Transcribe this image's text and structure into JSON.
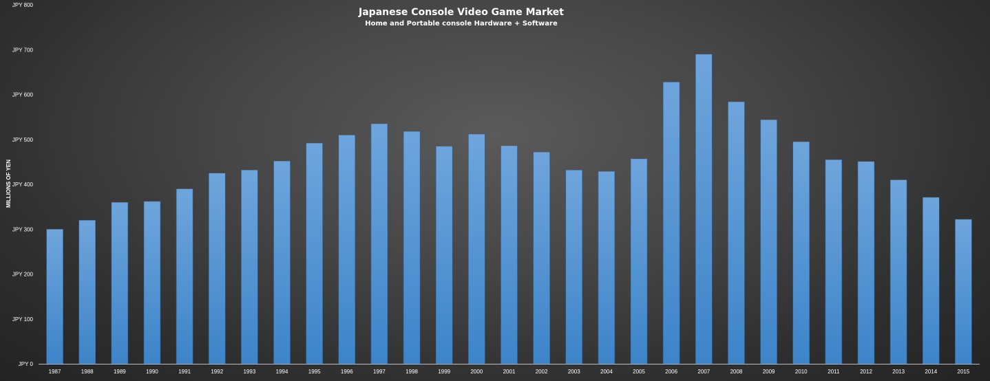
{
  "chart_data": {
    "type": "bar",
    "title": "Japanese Console Video Game Market",
    "subtitle": "Home and Portable console Hardware + Software",
    "ylabel": "MILLIONS OF YEN",
    "xlabel": "",
    "ylim": [
      0,
      800
    ],
    "yticks": [
      0,
      100,
      200,
      300,
      400,
      500,
      600,
      700,
      800
    ],
    "ytick_labels": [
      "JPY 0",
      "JPY 100",
      "JPY 200",
      "JPY 300",
      "JPY 400",
      "JPY 500",
      "JPY 600",
      "JPY 700",
      "JPY 800"
    ],
    "categories": [
      "1987",
      "1988",
      "1989",
      "1990",
      "1991",
      "1992",
      "1993",
      "1994",
      "1995",
      "1996",
      "1997",
      "1998",
      "1999",
      "2000",
      "2001",
      "2002",
      "2003",
      "2004",
      "2005",
      "2006",
      "2007",
      "2008",
      "2009",
      "2010",
      "2011",
      "2012",
      "2013",
      "2014",
      "2015"
    ],
    "values": [
      300,
      320,
      360,
      362,
      390,
      425,
      432,
      452,
      492,
      510,
      535,
      518,
      485,
      512,
      486,
      472,
      432,
      429,
      457,
      628,
      690,
      584,
      544,
      495,
      455,
      451,
      410,
      371,
      322
    ],
    "grid": false,
    "legend": "none",
    "colors": {
      "bar_top": "#6fa5dc",
      "bar_bottom": "#3d84c9",
      "axis": "#bdbdbd"
    }
  }
}
